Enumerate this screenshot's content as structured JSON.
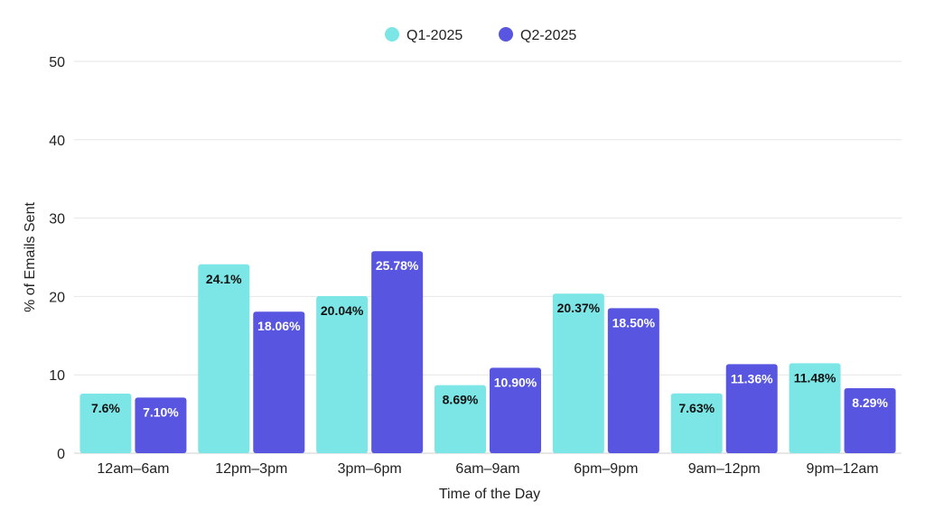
{
  "chart_data": {
    "type": "bar",
    "categories": [
      "12am–6am",
      "12pm–3pm",
      "3pm–6pm",
      "6am–9am",
      "6pm–9pm",
      "9am–12pm",
      "9pm–12am"
    ],
    "series": [
      {
        "name": "Q1-2025",
        "color": "#7ce6e6",
        "label_color": "#111111",
        "values": [
          7.6,
          24.1,
          20.04,
          8.69,
          20.37,
          7.63,
          11.48
        ],
        "labels": [
          "7.6%",
          "24.1%",
          "20.04%",
          "8.69%",
          "20.37%",
          "7.63%",
          "11.48%"
        ]
      },
      {
        "name": "Q2-2025",
        "color": "#5856e0",
        "label_color": "#ffffff",
        "values": [
          7.1,
          18.06,
          25.78,
          10.9,
          18.5,
          11.36,
          8.29
        ],
        "labels": [
          "7.10%",
          "18.06%",
          "25.78%",
          "10.90%",
          "18.50%",
          "11.36%",
          "8.29%"
        ]
      }
    ],
    "xlabel": "Time of the Day",
    "ylabel": "% of Emails Sent",
    "ylim": [
      0,
      50
    ],
    "yticks": [
      "0",
      "10",
      "20",
      "30",
      "40",
      "50"
    ],
    "ytick_values": [
      0,
      10,
      20,
      30,
      40,
      50
    ],
    "grid": true,
    "legend_position": "top-center"
  }
}
